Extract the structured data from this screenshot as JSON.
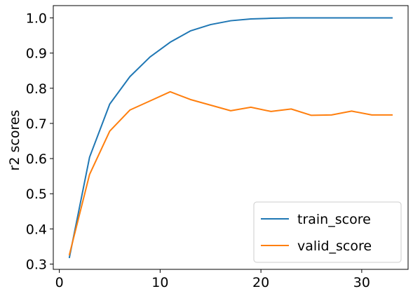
{
  "chart_data": {
    "type": "line",
    "xlabel": "",
    "ylabel": "r2 scores",
    "xlim": [
      -0.6,
      34.6
    ],
    "ylim": [
      0.285,
      1.035
    ],
    "x_ticks": [
      0,
      10,
      20,
      30
    ],
    "y_ticks": [
      0.3,
      0.4,
      0.5,
      0.6,
      0.7,
      0.8,
      0.9,
      1.0
    ],
    "y_tick_labels": [
      "0.3",
      "0.4",
      "0.5",
      "0.6",
      "0.7",
      "0.8",
      "0.9",
      "1.0"
    ],
    "grid": false,
    "legend_position": "bottom-right",
    "x": [
      1,
      3,
      5,
      7,
      9,
      11,
      13,
      15,
      17,
      19,
      21,
      23,
      25,
      27,
      29,
      31,
      33
    ],
    "series": [
      {
        "name": "train_score",
        "color": "#1f77b4",
        "values": [
          0.319,
          0.604,
          0.755,
          0.833,
          0.889,
          0.931,
          0.963,
          0.981,
          0.992,
          0.997,
          0.999,
          1.0,
          1.0,
          1.0,
          1.0,
          1.0,
          1.0
        ]
      },
      {
        "name": "valid_score",
        "color": "#ff7f0e",
        "values": [
          0.327,
          0.555,
          0.678,
          0.738,
          0.764,
          0.79,
          0.768,
          0.752,
          0.736,
          0.746,
          0.734,
          0.741,
          0.723,
          0.724,
          0.735,
          0.724,
          0.724
        ]
      }
    ]
  }
}
